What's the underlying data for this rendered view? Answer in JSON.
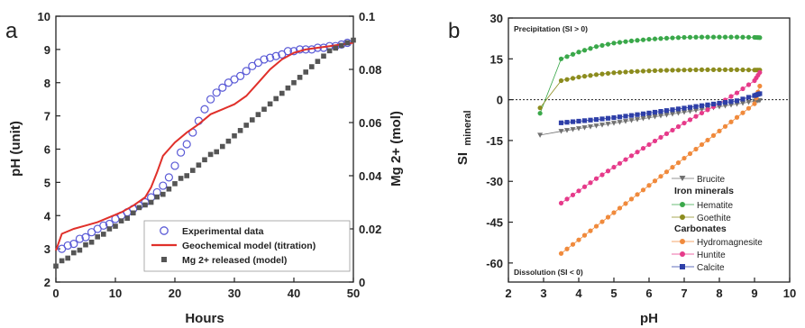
{
  "chart_data": [
    {
      "panel_label": "a",
      "type": "line",
      "xlabel": "Hours",
      "ylabel": "pH (unit)",
      "ylabel2": "Mg 2+ (mol)",
      "xlim": [
        0,
        50
      ],
      "ylim": [
        2,
        10
      ],
      "ylim2": [
        0,
        0.1
      ],
      "x_ticks": [
        "0",
        "10",
        "20",
        "30",
        "40",
        "50"
      ],
      "y_ticks": [
        "2",
        "3",
        "4",
        "5",
        "6",
        "7",
        "8",
        "9",
        "10"
      ],
      "y2_ticks": [
        "0",
        "0.02",
        "0.04",
        "0.06",
        "0.08",
        "0.1"
      ],
      "legend": [
        "Experimental data",
        "Geochemical model (titration)",
        "Mg 2+ released (model)"
      ],
      "series": [
        {
          "name": "Experimental data",
          "marker": "open-circle",
          "color": "#5a5ad6",
          "axis": "left",
          "x": [
            1,
            2,
            3,
            4,
            5,
            6,
            7,
            8,
            9,
            10,
            11,
            12,
            13,
            14,
            15,
            16,
            17,
            18,
            19,
            20,
            21,
            22,
            23,
            24,
            25,
            26,
            27,
            28,
            29,
            30,
            31,
            32,
            33,
            34,
            35,
            36,
            37,
            38,
            39,
            40,
            41,
            42,
            43,
            44,
            45,
            46,
            47,
            48,
            49
          ],
          "y": [
            3.0,
            3.1,
            3.15,
            3.3,
            3.35,
            3.5,
            3.6,
            3.7,
            3.75,
            3.9,
            4.0,
            4.1,
            4.2,
            4.3,
            4.4,
            4.55,
            4.7,
            4.9,
            5.15,
            5.5,
            5.9,
            6.15,
            6.5,
            6.85,
            7.2,
            7.5,
            7.7,
            7.85,
            8.0,
            8.1,
            8.2,
            8.35,
            8.5,
            8.6,
            8.7,
            8.75,
            8.8,
            8.85,
            8.95,
            8.95,
            9.0,
            9.0,
            9.0,
            9.05,
            9.05,
            9.1,
            9.1,
            9.15,
            9.2
          ]
        },
        {
          "name": "Geochemical model (titration)",
          "marker": "line",
          "color": "#e0302a",
          "axis": "left",
          "x": [
            0,
            0.3,
            1,
            3,
            5,
            7,
            9,
            11,
            13,
            15,
            16,
            17,
            18,
            19,
            20,
            22,
            24,
            26,
            28,
            30,
            32,
            34,
            36,
            38,
            40,
            42,
            44,
            46,
            48,
            50
          ],
          "y": [
            2.95,
            3.1,
            3.45,
            3.6,
            3.7,
            3.8,
            3.95,
            4.1,
            4.3,
            4.55,
            4.85,
            5.3,
            5.8,
            6.0,
            6.2,
            6.5,
            6.75,
            7.05,
            7.2,
            7.35,
            7.6,
            8.0,
            8.4,
            8.7,
            8.9,
            9.0,
            9.05,
            9.1,
            9.15,
            9.2
          ]
        },
        {
          "name": "Mg 2+ released (model)",
          "marker": "filled-square",
          "color": "#555555",
          "axis": "right",
          "x": [
            0,
            1,
            2,
            3,
            4,
            5,
            6,
            7,
            8,
            9,
            10,
            11,
            12,
            13,
            14,
            15,
            16,
            17,
            18,
            19,
            20,
            21,
            22,
            23,
            24,
            25,
            26,
            27,
            28,
            29,
            30,
            31,
            32,
            33,
            34,
            35,
            36,
            37,
            38,
            39,
            40,
            41,
            42,
            43,
            44,
            45,
            46,
            47,
            48,
            49,
            50
          ],
          "y": [
            0.006,
            0.008,
            0.009,
            0.011,
            0.012,
            0.014,
            0.015,
            0.017,
            0.018,
            0.02,
            0.021,
            0.023,
            0.024,
            0.026,
            0.028,
            0.029,
            0.03,
            0.032,
            0.033,
            0.035,
            0.037,
            0.039,
            0.04,
            0.042,
            0.044,
            0.046,
            0.048,
            0.049,
            0.051,
            0.053,
            0.055,
            0.057,
            0.059,
            0.061,
            0.063,
            0.065,
            0.067,
            0.069,
            0.071,
            0.073,
            0.075,
            0.077,
            0.079,
            0.081,
            0.083,
            0.085,
            0.087,
            0.088,
            0.089,
            0.09,
            0.091
          ]
        }
      ]
    },
    {
      "panel_label": "b",
      "type": "line",
      "xlabel": "pH",
      "ylabel": "SI",
      "ylabel_sub": "mineral",
      "xlim": [
        2,
        10
      ],
      "ylim": [
        -67,
        30
      ],
      "x_ticks": [
        "2",
        "3",
        "4",
        "5",
        "6",
        "7",
        "8",
        "9",
        "10"
      ],
      "y_ticks": [
        "-60",
        "-45",
        "-30",
        "-15",
        "0",
        "15",
        "30"
      ],
      "annotations": [
        "Precipitation (SI > 0)",
        "Dissolution (SI < 0)"
      ],
      "legend_groups": [
        "Iron minerals",
        "Carbonates"
      ],
      "series": [
        {
          "name": "Brucite",
          "marker": "triangle-down",
          "color": "#707070",
          "x": [
            2.9,
            3.5,
            4.0,
            4.5,
            5.0,
            5.5,
            6.0,
            6.5,
            7.0,
            7.5,
            8.0,
            8.5,
            9.0,
            9.15
          ],
          "y": [
            -13,
            -11.6,
            -10.6,
            -9.6,
            -8.6,
            -7.6,
            -6.6,
            -5.6,
            -4.6,
            -3.6,
            -2.6,
            -1.6,
            -0.6,
            -0.3
          ]
        },
        {
          "name": "Hematite",
          "marker": "circle",
          "color": "#3aa84a",
          "x": [
            2.9,
            3.5,
            4.0,
            4.5,
            5.0,
            5.5,
            6.0,
            6.5,
            7.0,
            7.5,
            8.0,
            8.5,
            9.0,
            9.15
          ],
          "y": [
            -5,
            15,
            17.5,
            19.5,
            20.8,
            21.6,
            22.2,
            22.6,
            22.9,
            23.0,
            23.0,
            23.0,
            22.9,
            22.8
          ]
        },
        {
          "name": "Goethite",
          "marker": "circle",
          "color": "#8c8c1e",
          "x": [
            2.9,
            3.5,
            4.0,
            4.5,
            5.0,
            5.5,
            6.0,
            6.5,
            7.0,
            7.5,
            8.0,
            8.5,
            9.0,
            9.15
          ],
          "y": [
            -3,
            7,
            8.3,
            9.2,
            9.9,
            10.3,
            10.6,
            10.8,
            10.9,
            11.0,
            11.0,
            11.0,
            10.9,
            10.9
          ]
        },
        {
          "name": "Hydromagnesite",
          "marker": "circle",
          "color": "#f08a3c",
          "x": [
            3.5,
            4.0,
            4.5,
            5.0,
            5.5,
            6.0,
            6.5,
            7.0,
            7.5,
            8.0,
            8.5,
            9.0,
            9.15
          ],
          "y": [
            -56.5,
            -51.5,
            -46.5,
            -41.5,
            -36.5,
            -31.5,
            -26.5,
            -21.5,
            -16.5,
            -11.5,
            -6.5,
            -1.5,
            5
          ]
        },
        {
          "name": "Huntite",
          "marker": "circle",
          "color": "#e63a8a",
          "x": [
            3.5,
            4.0,
            4.5,
            5.0,
            5.5,
            6.0,
            6.5,
            7.0,
            7.5,
            8.0,
            8.5,
            9.0,
            9.15
          ],
          "y": [
            -38,
            -33.5,
            -29,
            -24.8,
            -20.6,
            -16.5,
            -12.5,
            -8.6,
            -4.9,
            -1.4,
            2.5,
            7.0,
            10
          ]
        },
        {
          "name": "Calcite",
          "marker": "square",
          "color": "#2e3fa8",
          "x": [
            3.5,
            4.0,
            4.5,
            5.0,
            5.5,
            6.0,
            6.5,
            7.0,
            7.5,
            8.0,
            8.5,
            9.0,
            9.15
          ],
          "y": [
            -8.5,
            -7.9,
            -7.3,
            -6.6,
            -5.8,
            -4.9,
            -4.0,
            -3.1,
            -2.2,
            -1.3,
            -0.4,
            1.5,
            2.2
          ]
        }
      ]
    }
  ]
}
